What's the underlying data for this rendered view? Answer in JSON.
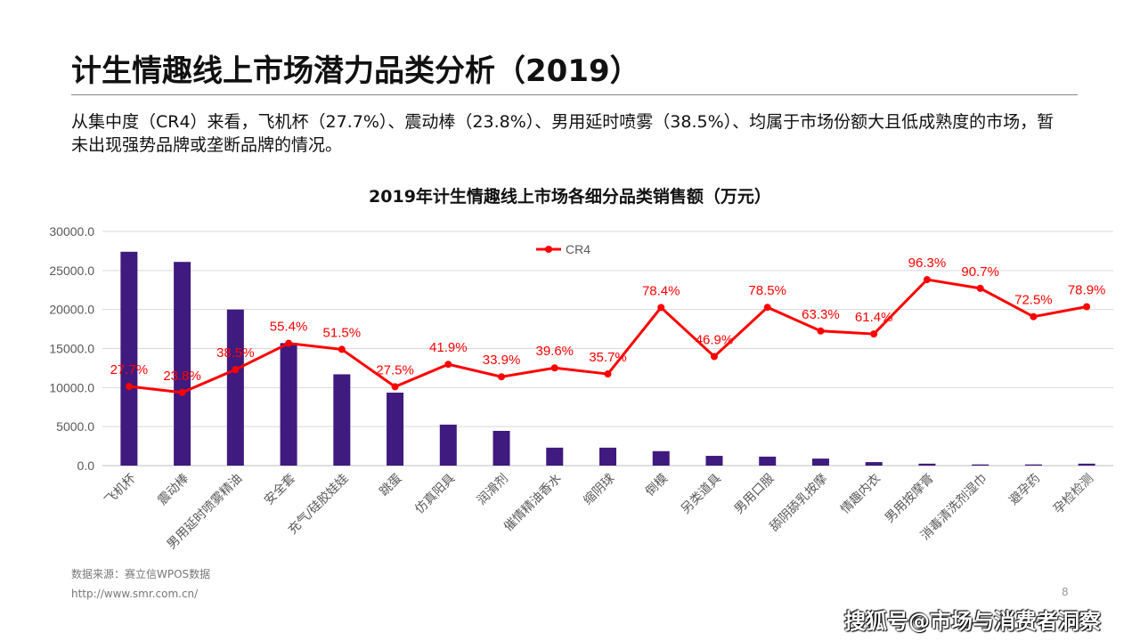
{
  "slide": {
    "title": "计生情趣线上市场潜力品类分析（2019）",
    "description": "从集中度（CR4）来看，飞机杯（27.7%）、震动棒（23.8%）、男用延时喷雾（38.5%）、均属于市场份额大且低成熟度的市场，暂未出现强势品牌或垄断品牌的情况。",
    "source": "数据来源：赛立信WPOS数据",
    "url": "http://www.smr.com.cn/",
    "page_number": "8",
    "watermark": "搜狐号@市场与消费者洞察"
  },
  "chart_data": {
    "type": "bar",
    "title": "2019年计生情趣线上市场各细分品类销售额（万元）",
    "categories": [
      "飞机杯",
      "震动棒",
      "男用延时喷雾精油",
      "安全套",
      "充气/硅胶娃娃",
      "跳蛋",
      "仿真阳具",
      "润滑剂",
      "催情精油香水",
      "缩阴球",
      "倒模",
      "另类道具",
      "男用口服",
      "舔阴舔乳按摩",
      "情趣内衣",
      "男用按摩膏",
      "消毒清洗剂湿巾",
      "避孕药",
      "孕检检测"
    ],
    "series": [
      {
        "type": "bar",
        "color": "#3f1a7f",
        "values": [
          27400,
          26100,
          20000,
          15700,
          11700,
          9350,
          5250,
          4450,
          2300,
          2300,
          1850,
          1250,
          1150,
          900,
          450,
          250,
          150,
          150,
          250
        ]
      },
      {
        "type": "line",
        "name": "CR4",
        "color": "#ff0000",
        "axis": "secondary",
        "values": [
          27.7,
          23.8,
          38.5,
          55.4,
          51.5,
          27.5,
          41.9,
          33.9,
          39.6,
          35.7,
          78.4,
          46.9,
          78.5,
          63.3,
          61.4,
          96.3,
          90.7,
          72.5,
          78.9
        ],
        "labels": [
          "27.7%",
          "23.8%",
          "38.5%",
          "55.4%",
          "51.5%",
          "27.5%",
          "41.9%",
          "33.9%",
          "39.6%",
          "35.7%",
          "78.4%",
          "46.9%",
          "78.5%",
          "63.3%",
          "61.4%",
          "96.3%",
          "90.7%",
          "72.5%",
          "78.9%"
        ]
      }
    ],
    "yticks": [
      "0.0",
      "5000.0",
      "10000.0",
      "15000.0",
      "20000.0",
      "25000.0",
      "30000.0"
    ],
    "ylim": [
      0,
      30000
    ],
    "grid": true,
    "legend": "top-center"
  }
}
